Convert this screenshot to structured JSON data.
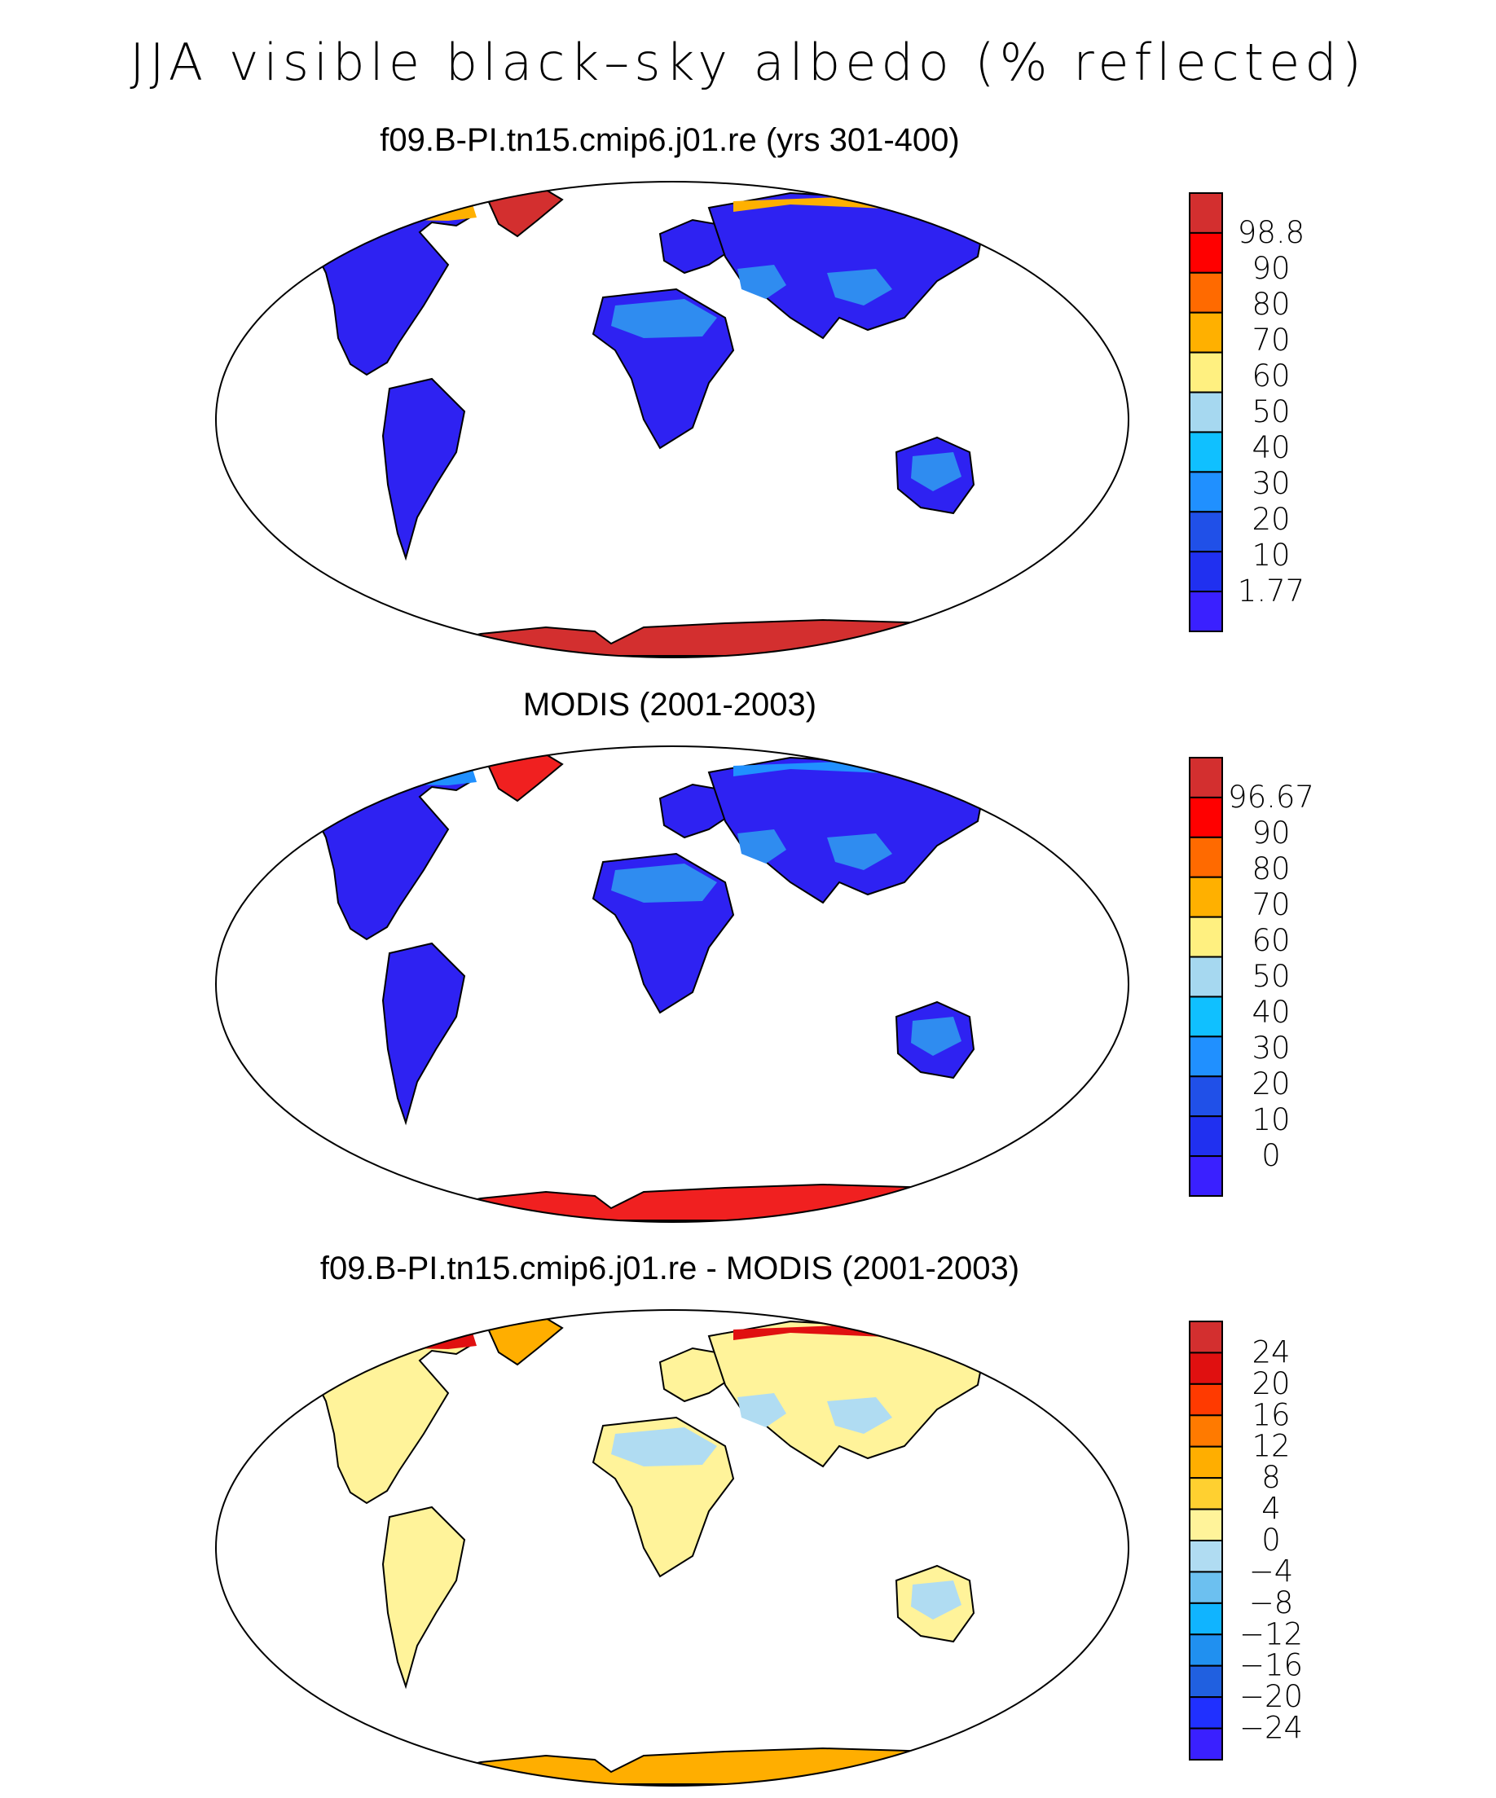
{
  "title": "JJA visible black–sky albedo (% reflected)",
  "panels": [
    {
      "id": "model",
      "title": "f09.B-PI.tn15.cmip6.j01.re (yrs 301-400)",
      "colorbar": {
        "labels": [
          "98.8",
          "90",
          "80",
          "70",
          "60",
          "50",
          "40",
          "30",
          "20",
          "10",
          "1.77"
        ],
        "colors": [
          "#d32f2f",
          "#ff0000",
          "#ff6a00",
          "#ffb000",
          "#fff080",
          "#a6d8f0",
          "#10c0ff",
          "#2090ff",
          "#2050e8",
          "#2030f0",
          "#3a20ff"
        ]
      },
      "fields": {
        "land": "#2e22f2",
        "desert": "#2f8cf0",
        "ice": "#d32f2f",
        "arctic": "#ffb000"
      }
    },
    {
      "id": "obs",
      "title": "MODIS (2001-2003)",
      "colorbar": {
        "labels": [
          "96.67",
          "90",
          "80",
          "70",
          "60",
          "50",
          "40",
          "30",
          "20",
          "10",
          "0"
        ],
        "colors": [
          "#d32f2f",
          "#ff0000",
          "#ff6a00",
          "#ffb000",
          "#fff080",
          "#a6d8f0",
          "#10c0ff",
          "#2090ff",
          "#2050e8",
          "#2030f0",
          "#3a20ff"
        ]
      },
      "fields": {
        "land": "#2e22f2",
        "desert": "#2f8cf0",
        "ice": "#f02020",
        "arctic": "#2090ff"
      }
    },
    {
      "id": "diff",
      "title": "f09.B-PI.tn15.cmip6.j01.re - MODIS (2001-2003)",
      "colorbar": {
        "labels": [
          "24",
          "20",
          "16",
          "12",
          "8",
          "4",
          "0",
          "−4",
          "−8",
          "−12",
          "−16",
          "−20",
          "−24"
        ],
        "colors": [
          "#d32f2f",
          "#e01010",
          "#ff3a00",
          "#ff7a00",
          "#ffae00",
          "#ffd030",
          "#fff39a",
          "#b0dcf2",
          "#6cc0f0",
          "#10b4ff",
          "#2090f0",
          "#2060e0",
          "#2030ff",
          "#3a20ff"
        ]
      },
      "fields": {
        "land": "#fff39a",
        "desert": "#b0dcf2",
        "ice": "#ffae00",
        "arctic": "#e01010"
      }
    }
  ]
}
